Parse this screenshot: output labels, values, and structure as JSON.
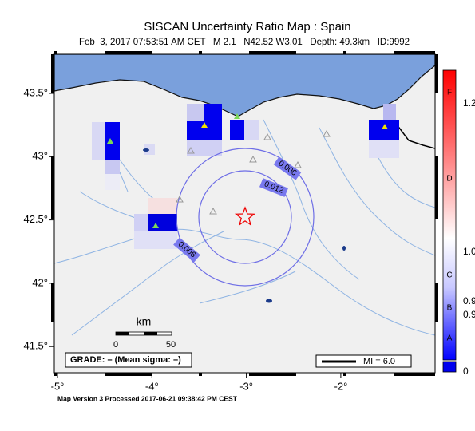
{
  "header": {
    "title": "SISCAN Uncertainty Ratio Map : Spain",
    "subtitle": "Feb  3, 2017 07:53:51 AM CET   M 2.1   N42.52 W3.01   Depth: 49.3km   ID:9992"
  },
  "map": {
    "lon_ticks": [
      {
        "value": -5,
        "label": "-5°"
      },
      {
        "value": -4,
        "label": "-4°"
      },
      {
        "value": -3,
        "label": "-3°"
      },
      {
        "value": -2,
        "label": "-2°"
      }
    ],
    "lat_ticks": [
      {
        "value": 43.5,
        "label": "43.5°"
      },
      {
        "value": 43,
        "label": "43°"
      },
      {
        "value": 42.5,
        "label": "42.5°"
      },
      {
        "value": 42,
        "label": "42°"
      },
      {
        "value": 41.5,
        "label": "41.5°"
      }
    ],
    "contour_labels": [
      "0.006",
      "0.012",
      "0.006"
    ],
    "scale": {
      "unit": "km",
      "start": "0",
      "end": "50"
    },
    "grade": "GRADE: – (Mean sigma: –)",
    "legend": "MI = 6.0"
  },
  "colorbar": {
    "grades": [
      "F",
      "D",
      "C",
      "B",
      "A"
    ],
    "values": [
      "1.2",
      "1.0",
      "0.9",
      "0.9",
      "0"
    ]
  },
  "footer": "Map Version 3 Processed 2017-06-21 09:38:42 PM CEST"
}
